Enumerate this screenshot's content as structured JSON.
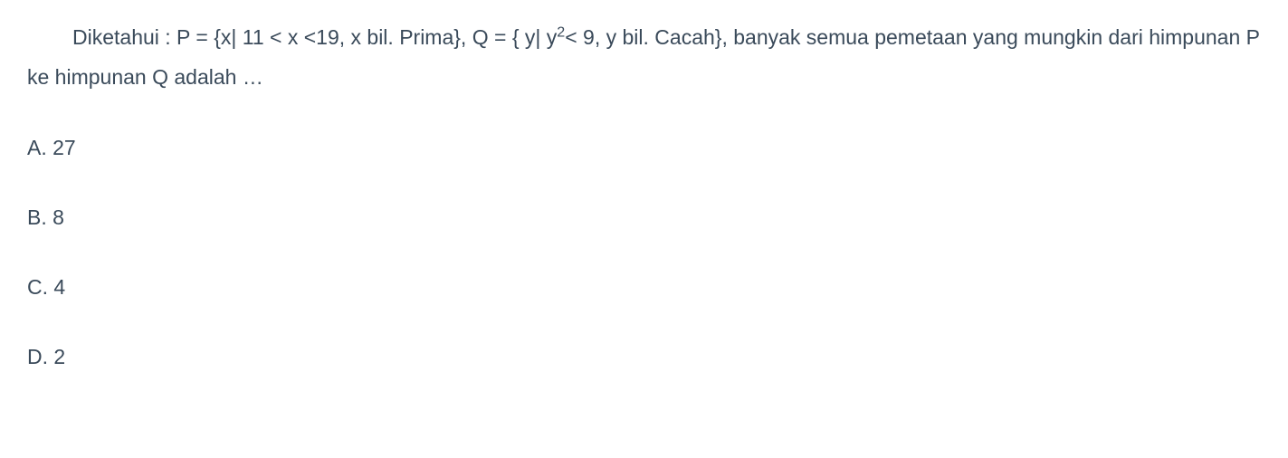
{
  "question": {
    "text_parts": {
      "part1": "Diketahui : P = {x| 11 < x <19, x bil. Prima}, Q = { y| y",
      "superscript": "2",
      "part2": "< 9, y bil. Cacah}, banyak semua pemetaan yang mungkin dari himpunan P ke himpunan Q adalah …"
    },
    "text_color": "#3a4a5a",
    "background_color": "#ffffff",
    "font_size": 23,
    "text_indent": 50
  },
  "options": [
    {
      "label": "A. 27"
    },
    {
      "label": "B. 8"
    },
    {
      "label": "C.  4"
    },
    {
      "label": "D.  2"
    }
  ]
}
